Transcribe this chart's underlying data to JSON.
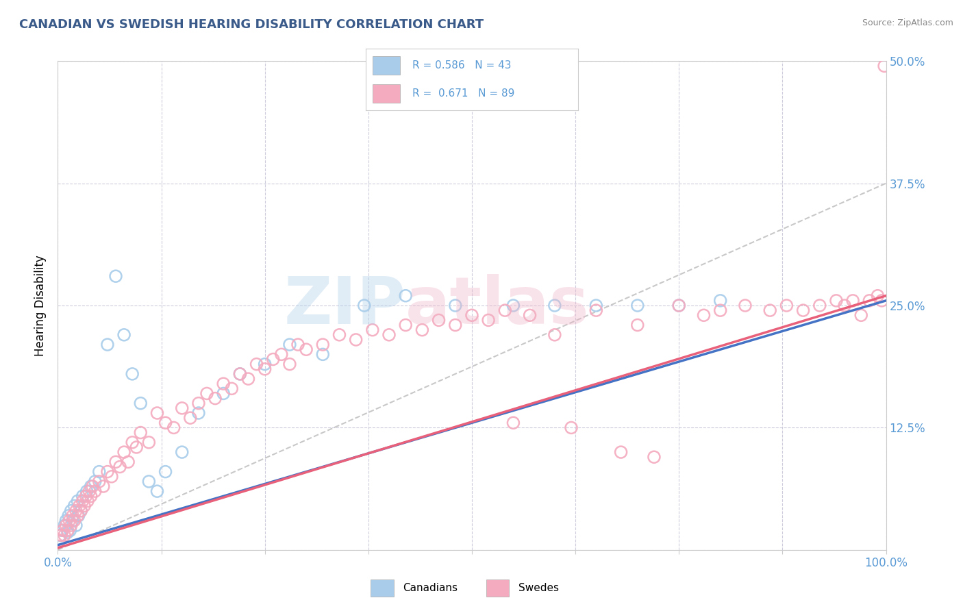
{
  "title": "CANADIAN VS SWEDISH HEARING DISABILITY CORRELATION CHART",
  "source_text": "Source: ZipAtlas.com",
  "ylabel": "Hearing Disability",
  "legend_canadians": "Canadians",
  "legend_swedes": "Swedes",
  "r_canadian": 0.586,
  "n_canadian": 43,
  "r_swedish": 0.671,
  "n_swedish": 89,
  "color_canadian": "#A8CCEA",
  "color_swedish": "#F4AABF",
  "color_canadian_line": "#4472C4",
  "color_swedish_line": "#E8607A",
  "color_ref_line": "#BBBBBB",
  "title_color": "#3A5A8A",
  "axis_label_color": "#5B9BD5",
  "watermark_ZIP": "#AACCE8",
  "watermark_atlas": "#F0B0C4",
  "xlim": [
    0,
    100
  ],
  "ylim": [
    0,
    50
  ],
  "xtick_labels": [
    "0.0%",
    "",
    "",
    "",
    "",
    "",
    "",
    "",
    "100.0%"
  ],
  "ytick_labels": [
    "",
    "12.5%",
    "25.0%",
    "37.5%",
    "50.0%"
  ],
  "xticks": [
    0,
    12.5,
    25.0,
    37.5,
    50.0,
    62.5,
    75.0,
    87.5,
    100.0
  ],
  "yticks": [
    0,
    12.5,
    25.0,
    37.5,
    50.0
  ],
  "grid_color": "#CCCCDD",
  "background_color": "#FFFFFF",
  "can_line_x0": 0,
  "can_line_y0": 0.5,
  "can_line_x1": 100,
  "can_line_y1": 25.5,
  "swe_line_x0": 0,
  "swe_line_y0": 0.2,
  "swe_line_x1": 100,
  "swe_line_y1": 26.0,
  "ref_line_x0": 0,
  "ref_line_y0": 0,
  "ref_line_x1": 100,
  "ref_line_y1": 37.5
}
